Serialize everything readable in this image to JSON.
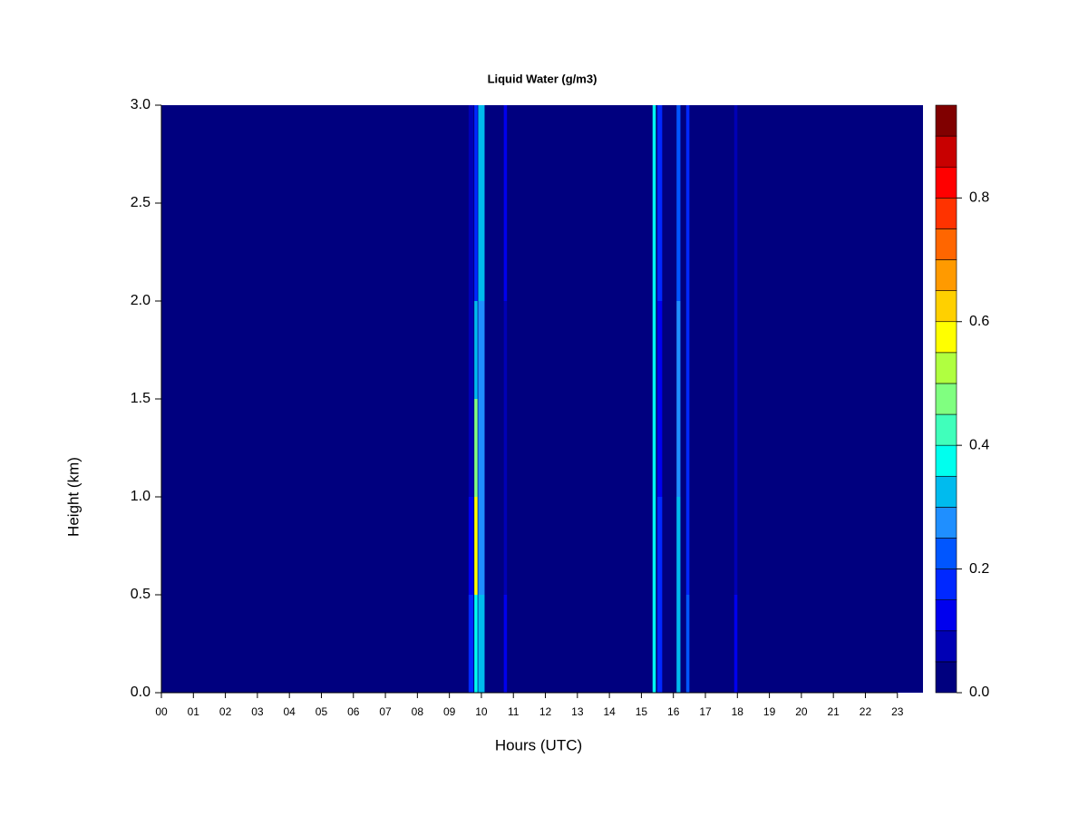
{
  "chart_data": {
    "type": "heatmap",
    "title": "Liquid Water (g/m3)",
    "xlabel": "Hours (UTC)",
    "ylabel": "Height (km)",
    "xlim": [
      0,
      23.8
    ],
    "xticks": [
      {
        "value": 0,
        "label": "00"
      },
      {
        "value": 1,
        "label": "01"
      },
      {
        "value": 2,
        "label": "02"
      },
      {
        "value": 3,
        "label": "03"
      },
      {
        "value": 4,
        "label": "04"
      },
      {
        "value": 5,
        "label": "05"
      },
      {
        "value": 6,
        "label": "06"
      },
      {
        "value": 7,
        "label": "07"
      },
      {
        "value": 8,
        "label": "08"
      },
      {
        "value": 9,
        "label": "09"
      },
      {
        "value": 10,
        "label": "10"
      },
      {
        "value": 11,
        "label": "11"
      },
      {
        "value": 12,
        "label": "12"
      },
      {
        "value": 13,
        "label": "13"
      },
      {
        "value": 14,
        "label": "14"
      },
      {
        "value": 15,
        "label": "15"
      },
      {
        "value": 16,
        "label": "16"
      },
      {
        "value": 17,
        "label": "17"
      },
      {
        "value": 18,
        "label": "18"
      },
      {
        "value": 19,
        "label": "19"
      },
      {
        "value": 20,
        "label": "20"
      },
      {
        "value": 21,
        "label": "21"
      },
      {
        "value": 22,
        "label": "22"
      },
      {
        "value": 23,
        "label": "23"
      }
    ],
    "ylim": [
      0,
      3
    ],
    "yticks": [
      {
        "value": 0,
        "label": "0.0"
      },
      0.5,
      {
        "value": 1,
        "label": "1.0"
      },
      1.5,
      {
        "value": 2,
        "label": "2.0"
      },
      2.5,
      {
        "value": 3,
        "label": "3.0"
      }
    ],
    "height_bands": [
      0,
      0.5,
      1.0,
      1.5,
      2.0,
      3.0
    ],
    "columns": [
      {
        "x0": 9.6,
        "x1": 9.75,
        "values": [
          0.15,
          0.1,
          0.05,
          0.05,
          0.05
        ]
      },
      {
        "x0": 9.78,
        "x1": 9.88,
        "values": [
          0.35,
          0.55,
          0.45,
          0.3,
          0.15
        ]
      },
      {
        "x0": 9.9,
        "x1": 10.1,
        "values": [
          0.3,
          0.25,
          0.25,
          0.25,
          0.3
        ]
      },
      {
        "x0": 10.7,
        "x1": 10.8,
        "values": [
          0.1,
          0.05,
          0.05,
          0.05,
          0.1
        ]
      },
      {
        "x0": 15.35,
        "x1": 15.45,
        "values": [
          0.35,
          0.35,
          0.35,
          0.35,
          0.35
        ]
      },
      {
        "x0": 15.5,
        "x1": 15.65,
        "values": [
          0.15,
          0.15,
          0.1,
          0.1,
          0.15
        ]
      },
      {
        "x0": 16.1,
        "x1": 16.22,
        "values": [
          0.3,
          0.3,
          0.25,
          0.25,
          0.2
        ]
      },
      {
        "x0": 16.4,
        "x1": 16.5,
        "values": [
          0.2,
          0.15,
          0.15,
          0.15,
          0.15
        ]
      },
      {
        "x0": 17.9,
        "x1": 18.0,
        "values": [
          0.1,
          0.05,
          0.05,
          0.05,
          0.05
        ]
      }
    ],
    "colorbar": {
      "levels": [
        0,
        0.05,
        0.1,
        0.15,
        0.2,
        0.25,
        0.3,
        0.35,
        0.4,
        0.45,
        0.5,
        0.55,
        0.6,
        0.65,
        0.7,
        0.75,
        0.8,
        0.85,
        0.9,
        0.95
      ],
      "colors": [
        "#00007f",
        "#0000b5",
        "#0000ee",
        "#0028ff",
        "#0056ff",
        "#1f8fff",
        "#00bbee",
        "#00ffee",
        "#40ffbb",
        "#80ff80",
        "#b0ff40",
        "#ffff00",
        "#ffd000",
        "#ff9a00",
        "#ff6600",
        "#ff3300",
        "#ff0000",
        "#c80000",
        "#800000"
      ],
      "ticks": [
        {
          "value": 0,
          "label": "0.0"
        },
        0.2,
        0.4,
        0.6,
        0.8
      ]
    }
  }
}
